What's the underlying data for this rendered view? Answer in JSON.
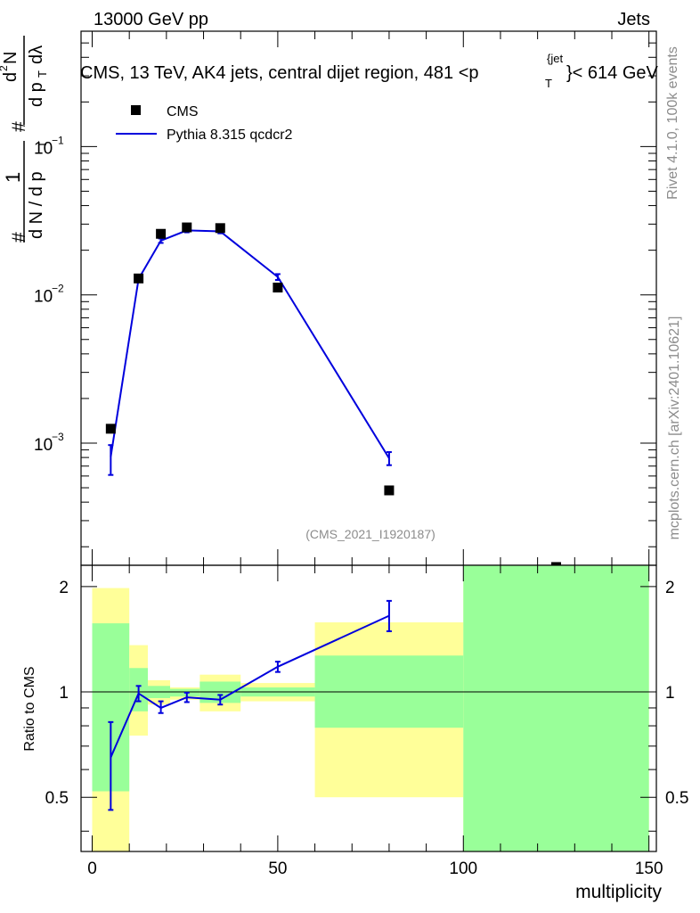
{
  "header": {
    "energy_label": "13000 GeV pp",
    "process_label": "Jets",
    "side_rivet": "Rivet 4.1.0,  100k events",
    "side_mcplots": "mcplots.cern.ch [arXiv:2401.10621]"
  },
  "chart_data": [
    {
      "type": "scatter",
      "title": "CMS, 13 TeV, AK4 jets, central dijet region, 481 <p_T^{jet}< 614 GeV",
      "title_parts": {
        "main": "CMS, 13 TeV, AK4 jets, central dijet region, 481 <p",
        "sub": "T",
        "sup": "{jet",
        "tail": "}< 614 GeV"
      },
      "ylabel": "1/(dN/dp_T) d²N/(dp_T dλ)",
      "ylabel_parts": {
        "one": "1",
        "hash": "#",
        "den": "d N / d p",
        "num": "d",
        "num_sup": "2",
        "num_N": "N",
        "num_den": "d p",
        "lambda": "dλ",
        "sub_T": "T"
      },
      "xlim": [
        -3,
        152
      ],
      "ylim": [
        0.00015,
        0.6
      ],
      "yscale": "log",
      "yticks": [
        0.001,
        0.01,
        0.1
      ],
      "ytick_labels": [
        {
          "base": "10",
          "exp": "−3"
        },
        {
          "base": "10",
          "exp": "−2"
        },
        {
          "base": "10",
          "exp": "−1"
        }
      ],
      "watermark": "(CMS_2021_I1920187)",
      "legend": {
        "position": "top-left",
        "entries": [
          "CMS",
          "Pythia 8.315 qcdcr2"
        ]
      },
      "series": [
        {
          "name": "CMS",
          "marker": "square",
          "color": "#000000",
          "x": [
            5,
            12.5,
            18.5,
            25.5,
            34.5,
            50,
            80,
            125
          ],
          "y": [
            0.00125,
            0.0129,
            0.0258,
            0.0285,
            0.0282,
            0.0112,
            0.00048,
            0.000146
          ]
        },
        {
          "name": "Pythia 8.315 qcdcr2",
          "marker": "line",
          "color": "#0000dd",
          "x": [
            5,
            12.5,
            18.5,
            25.5,
            34.5,
            50,
            80
          ],
          "y": [
            0.00081,
            0.0128,
            0.0232,
            0.0272,
            0.0268,
            0.0132,
            0.00079
          ],
          "y_err_low": [
            0.00061,
            0.0122,
            0.0224,
            0.0264,
            0.026,
            0.0126,
            0.00071
          ],
          "y_err_high": [
            0.00097,
            0.0134,
            0.024,
            0.028,
            0.0276,
            0.0138,
            0.00087
          ]
        }
      ]
    },
    {
      "type": "line",
      "ylabel": "Ratio to CMS",
      "xlabel": "multiplicity",
      "xlim": [
        -3,
        152
      ],
      "ylim": [
        0.35,
        2.3
      ],
      "yscale": "log",
      "yticks": [
        0.5,
        1,
        2
      ],
      "ytick_labels": [
        "0.5",
        "1",
        "2"
      ],
      "xticks": [
        0,
        50,
        100,
        150
      ],
      "xtick_labels": [
        "0",
        "50",
        "100",
        "150"
      ],
      "bands": [
        {
          "x": [
            0,
            10
          ],
          "yellow": [
            0.33,
            1.98
          ],
          "green": [
            0.52,
            1.57
          ]
        },
        {
          "x": [
            10,
            15
          ],
          "yellow": [
            0.75,
            1.36
          ],
          "green": [
            0.88,
            1.17
          ]
        },
        {
          "x": [
            15,
            21
          ],
          "yellow": [
            0.92,
            1.08
          ],
          "green": [
            0.96,
            1.04
          ]
        },
        {
          "x": [
            21,
            29
          ],
          "yellow": [
            0.95,
            1.03
          ],
          "green": [
            0.97,
            1.02
          ]
        },
        {
          "x": [
            29,
            40
          ],
          "yellow": [
            0.88,
            1.12
          ],
          "green": [
            0.93,
            1.07
          ]
        },
        {
          "x": [
            40,
            60
          ],
          "yellow": [
            0.94,
            1.06
          ],
          "green": [
            0.97,
            1.03
          ]
        },
        {
          "x": [
            60,
            100
          ],
          "yellow": [
            0.5,
            1.58
          ],
          "green": [
            0.79,
            1.27
          ]
        },
        {
          "x": [
            100,
            150
          ],
          "yellow": [
            0.33,
            2.4
          ],
          "green": [
            0.33,
            2.4
          ]
        }
      ],
      "band_colors": {
        "yellow": "#ffff99",
        "green": "#99ff99"
      },
      "series": [
        {
          "name": "Pythia 8.315 qcdcr2",
          "color": "#0000dd",
          "x": [
            5,
            12.5,
            18.5,
            25.5,
            34.5,
            50,
            80
          ],
          "y": [
            0.65,
            0.99,
            0.9,
            0.965,
            0.95,
            1.18,
            1.65
          ],
          "y_err_low": [
            0.46,
            0.94,
            0.87,
            0.935,
            0.92,
            1.14,
            1.49
          ],
          "y_err_high": [
            0.82,
            1.04,
            0.94,
            0.995,
            0.98,
            1.22,
            1.82
          ]
        }
      ]
    }
  ]
}
